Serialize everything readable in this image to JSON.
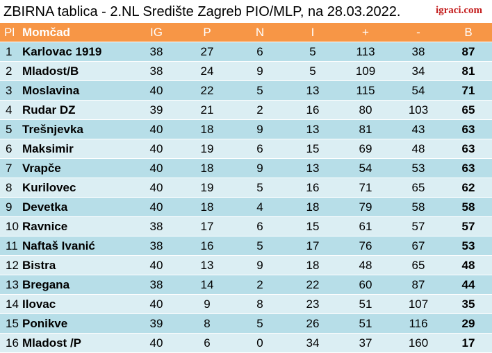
{
  "title": "ZBIRNA tablica - 2.NL Središte Zagreb PIO/MLP, na 28.03.2022.",
  "logo_text": "igraci.com",
  "colors": {
    "header_bg": "#f79646",
    "row_dark": "#b7dee8",
    "row_light": "#dbeef3",
    "logo": "#c41e1e"
  },
  "headers": [
    "Pl",
    "Momčad",
    "IG",
    "P",
    "N",
    "I",
    "+",
    "-",
    "B"
  ],
  "rows": [
    [
      "1",
      "Karlovac 1919",
      "38",
      "27",
      "6",
      "5",
      "113",
      "38",
      "87"
    ],
    [
      "2",
      "Mladost/B",
      "38",
      "24",
      "9",
      "5",
      "109",
      "34",
      "81"
    ],
    [
      "3",
      "Moslavina",
      "40",
      "22",
      "5",
      "13",
      "115",
      "54",
      "71"
    ],
    [
      "4",
      "Rudar DZ",
      "39",
      "21",
      "2",
      "16",
      "80",
      "103",
      "65"
    ],
    [
      "5",
      "Trešnjevka",
      "40",
      "18",
      "9",
      "13",
      "81",
      "43",
      "63"
    ],
    [
      "6",
      "Maksimir",
      "40",
      "19",
      "6",
      "15",
      "69",
      "48",
      "63"
    ],
    [
      "7",
      "Vrapče",
      "40",
      "18",
      "9",
      "13",
      "54",
      "53",
      "63"
    ],
    [
      "8",
      "Kurilovec",
      "40",
      "19",
      "5",
      "16",
      "71",
      "65",
      "62"
    ],
    [
      "9",
      "Devetka",
      "40",
      "18",
      "4",
      "18",
      "79",
      "58",
      "58"
    ],
    [
      "10",
      "Ravnice",
      "38",
      "17",
      "6",
      "15",
      "61",
      "57",
      "57"
    ],
    [
      "11",
      "Naftaš Ivanić",
      "38",
      "16",
      "5",
      "17",
      "76",
      "67",
      "53"
    ],
    [
      "12",
      "Bistra",
      "40",
      "13",
      "9",
      "18",
      "48",
      "65",
      "48"
    ],
    [
      "13",
      "Bregana",
      "38",
      "14",
      "2",
      "22",
      "60",
      "87",
      "44"
    ],
    [
      "14",
      "Ilovac",
      "40",
      "9",
      "8",
      "23",
      "51",
      "107",
      "35"
    ],
    [
      "15",
      "Ponikve",
      "39",
      "8",
      "5",
      "26",
      "51",
      "116",
      "29"
    ],
    [
      "16",
      "Mladost /P",
      "40",
      "6",
      "0",
      "34",
      "37",
      "160",
      "17"
    ]
  ]
}
